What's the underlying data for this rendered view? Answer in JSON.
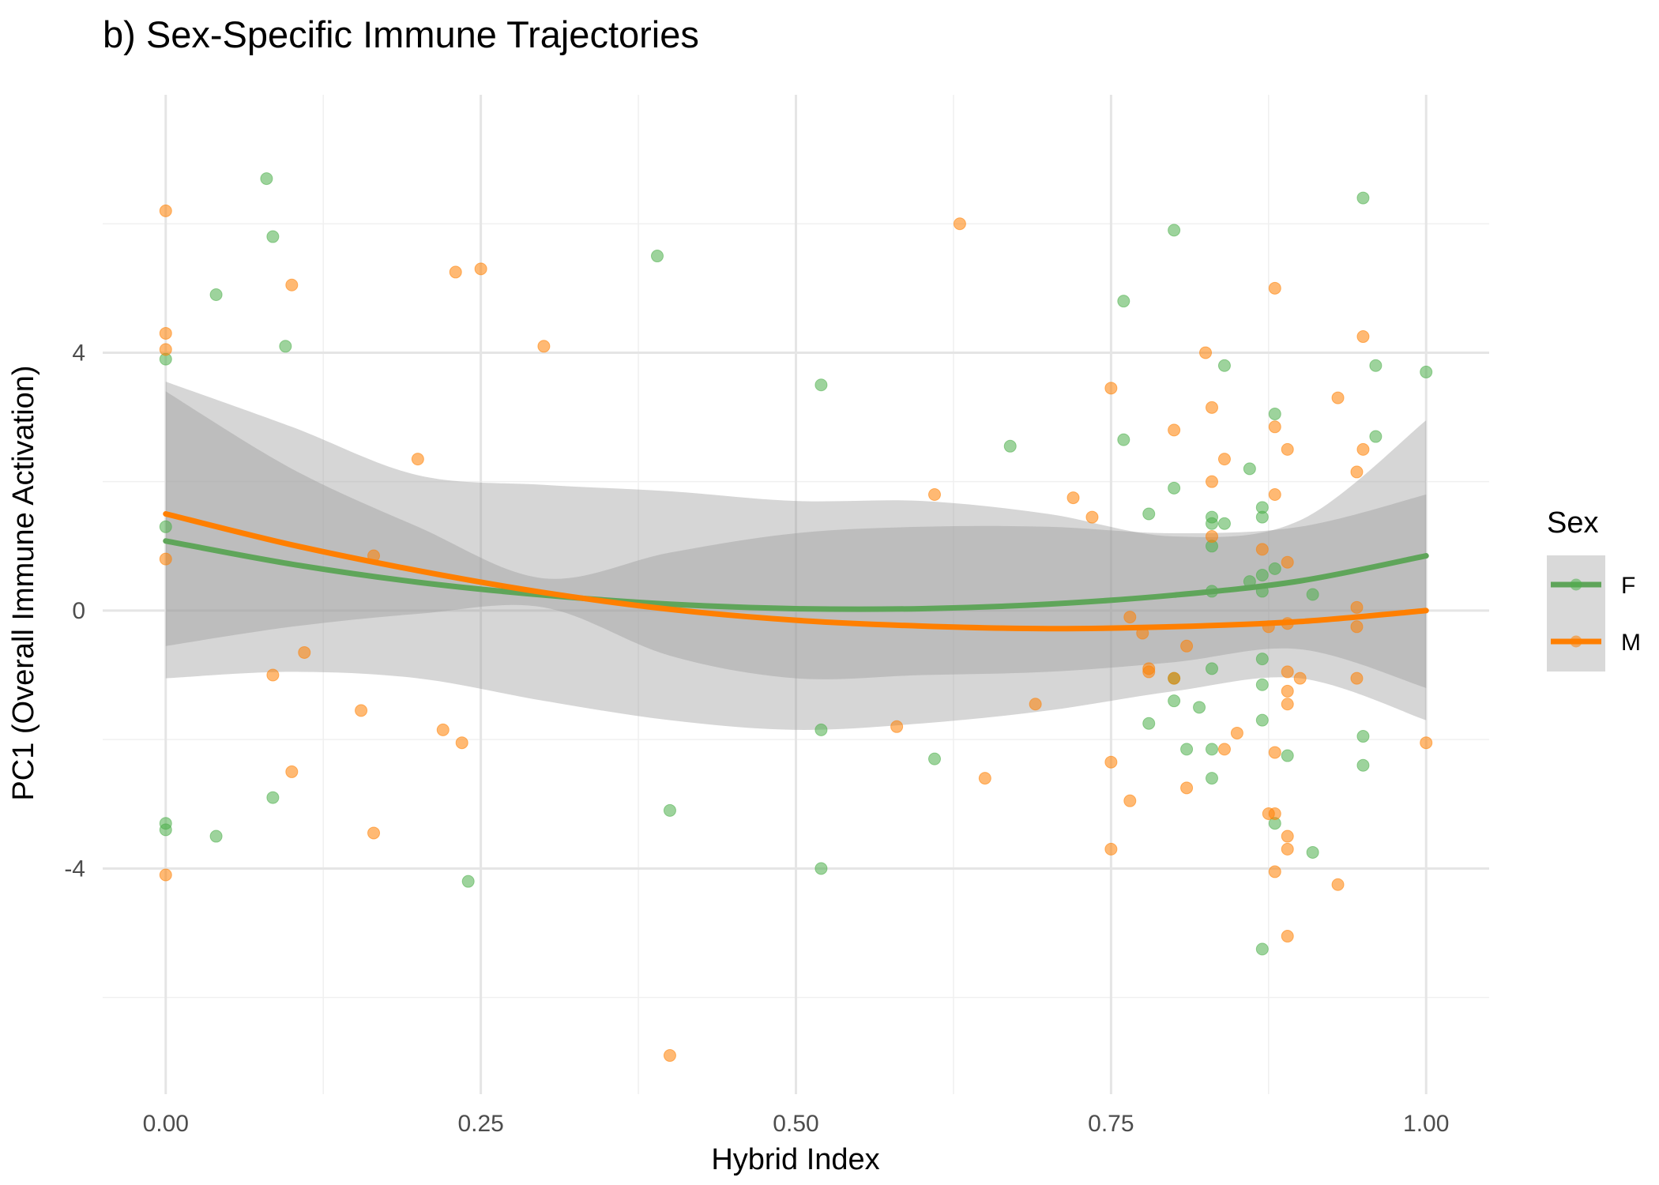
{
  "chart_data": {
    "type": "scatter",
    "title": "b) Sex-Specific Immune Trajectories",
    "xlabel": "Hybrid Index",
    "ylabel": "PC1 (Overall Immune Activation)",
    "xlim": [
      -0.05,
      1.05
    ],
    "ylim": [
      -7.5,
      8.0
    ],
    "x_ticks": [
      {
        "value": 0.0,
        "label": "0.00"
      },
      {
        "value": 0.25,
        "label": "0.25"
      },
      {
        "value": 0.5,
        "label": "0.50"
      },
      {
        "value": 0.75,
        "label": "0.75"
      },
      {
        "value": 1.0,
        "label": "1.00"
      }
    ],
    "y_ticks": [
      {
        "value": 4,
        "label": "4"
      },
      {
        "value": 0,
        "label": "0"
      },
      {
        "value": -4,
        "label": "-4"
      }
    ],
    "grid": true,
    "legend": {
      "title": "Sex",
      "position": "right"
    },
    "series": [
      {
        "name": "F",
        "color": "#4DAF4A",
        "points": [
          [
            0.08,
            6.7
          ],
          [
            0.085,
            5.8
          ],
          [
            0.04,
            4.9
          ],
          [
            0.095,
            4.1
          ],
          [
            0.0,
            3.9
          ],
          [
            0.0,
            1.3
          ],
          [
            0.0,
            -3.3
          ],
          [
            0.0,
            -3.4
          ],
          [
            0.04,
            -3.5
          ],
          [
            0.085,
            -2.9
          ],
          [
            0.24,
            -4.2
          ],
          [
            0.39,
            5.5
          ],
          [
            0.4,
            -3.1
          ],
          [
            0.52,
            3.5
          ],
          [
            0.52,
            -1.85
          ],
          [
            0.52,
            -4.0
          ],
          [
            0.61,
            -2.3
          ],
          [
            0.67,
            2.55
          ],
          [
            0.76,
            4.8
          ],
          [
            0.76,
            2.65
          ],
          [
            0.78,
            1.5
          ],
          [
            0.78,
            -1.75
          ],
          [
            0.8,
            5.9
          ],
          [
            0.8,
            1.9
          ],
          [
            0.8,
            -1.4
          ],
          [
            0.8,
            -1.05
          ],
          [
            0.81,
            -2.15
          ],
          [
            0.82,
            -1.5
          ],
          [
            0.83,
            1.45
          ],
          [
            0.83,
            1.35
          ],
          [
            0.83,
            1.0
          ],
          [
            0.83,
            0.3
          ],
          [
            0.83,
            -0.9
          ],
          [
            0.83,
            -2.15
          ],
          [
            0.83,
            -2.6
          ],
          [
            0.84,
            3.8
          ],
          [
            0.84,
            1.35
          ],
          [
            0.86,
            2.2
          ],
          [
            0.86,
            0.45
          ],
          [
            0.87,
            1.6
          ],
          [
            0.87,
            1.45
          ],
          [
            0.87,
            0.55
          ],
          [
            0.87,
            0.3
          ],
          [
            0.87,
            -0.75
          ],
          [
            0.87,
            -1.15
          ],
          [
            0.87,
            -1.7
          ],
          [
            0.87,
            -5.25
          ],
          [
            0.88,
            3.05
          ],
          [
            0.88,
            0.65
          ],
          [
            0.88,
            -3.3
          ],
          [
            0.89,
            -2.25
          ],
          [
            0.91,
            0.25
          ],
          [
            0.91,
            -3.75
          ],
          [
            0.95,
            6.4
          ],
          [
            0.95,
            -1.95
          ],
          [
            0.95,
            -2.4
          ],
          [
            0.96,
            3.8
          ],
          [
            0.96,
            2.7
          ],
          [
            1.0,
            3.7
          ]
        ],
        "trend": [
          [
            0.0,
            1.08
          ],
          [
            0.1,
            0.72
          ],
          [
            0.2,
            0.44
          ],
          [
            0.3,
            0.24
          ],
          [
            0.4,
            0.1
          ],
          [
            0.5,
            0.03
          ],
          [
            0.6,
            0.03
          ],
          [
            0.7,
            0.1
          ],
          [
            0.8,
            0.24
          ],
          [
            0.9,
            0.46
          ],
          [
            1.0,
            0.85
          ]
        ],
        "band": [
          [
            0.0,
            -0.55,
            3.4
          ],
          [
            0.1,
            -0.25,
            2.2
          ],
          [
            0.2,
            -0.05,
            1.3
          ],
          [
            0.3,
            0.05,
            0.5
          ],
          [
            0.4,
            -0.7,
            0.9
          ],
          [
            0.5,
            -1.05,
            1.2
          ],
          [
            0.6,
            -1.0,
            1.3
          ],
          [
            0.7,
            -0.95,
            1.3
          ],
          [
            0.8,
            -0.8,
            1.2
          ],
          [
            0.9,
            -0.6,
            1.3
          ],
          [
            1.0,
            -1.2,
            1.8
          ]
        ]
      },
      {
        "name": "M",
        "color": "#FF7F00",
        "points": [
          [
            0.0,
            6.2
          ],
          [
            0.0,
            4.3
          ],
          [
            0.0,
            4.05
          ],
          [
            0.0,
            0.8
          ],
          [
            0.0,
            -4.1
          ],
          [
            0.085,
            -1.0
          ],
          [
            0.1,
            5.05
          ],
          [
            0.1,
            -2.5
          ],
          [
            0.11,
            -0.65
          ],
          [
            0.155,
            -1.55
          ],
          [
            0.165,
            0.85
          ],
          [
            0.165,
            -3.45
          ],
          [
            0.2,
            2.35
          ],
          [
            0.22,
            -1.85
          ],
          [
            0.23,
            5.25
          ],
          [
            0.235,
            -2.05
          ],
          [
            0.25,
            5.3
          ],
          [
            0.3,
            4.1
          ],
          [
            0.4,
            -6.9
          ],
          [
            0.58,
            -1.8
          ],
          [
            0.61,
            1.8
          ],
          [
            0.63,
            6.0
          ],
          [
            0.65,
            -2.6
          ],
          [
            0.69,
            -1.45
          ],
          [
            0.72,
            1.75
          ],
          [
            0.735,
            1.45
          ],
          [
            0.75,
            3.45
          ],
          [
            0.75,
            -2.35
          ],
          [
            0.75,
            -3.7
          ],
          [
            0.765,
            -0.1
          ],
          [
            0.765,
            -2.95
          ],
          [
            0.775,
            -0.35
          ],
          [
            0.78,
            -0.95
          ],
          [
            0.78,
            -0.9
          ],
          [
            0.8,
            2.8
          ],
          [
            0.8,
            -1.05
          ],
          [
            0.81,
            -0.55
          ],
          [
            0.81,
            -2.75
          ],
          [
            0.825,
            4.0
          ],
          [
            0.83,
            3.15
          ],
          [
            0.83,
            2.0
          ],
          [
            0.83,
            1.15
          ],
          [
            0.84,
            2.35
          ],
          [
            0.84,
            -2.15
          ],
          [
            0.85,
            -1.9
          ],
          [
            0.87,
            0.95
          ],
          [
            0.875,
            -3.15
          ],
          [
            0.875,
            -0.25
          ],
          [
            0.88,
            5.0
          ],
          [
            0.88,
            2.85
          ],
          [
            0.88,
            1.8
          ],
          [
            0.88,
            -2.2
          ],
          [
            0.88,
            -3.15
          ],
          [
            0.88,
            -4.05
          ],
          [
            0.89,
            2.5
          ],
          [
            0.89,
            0.75
          ],
          [
            0.89,
            -0.2
          ],
          [
            0.89,
            -0.95
          ],
          [
            0.89,
            -1.25
          ],
          [
            0.89,
            -1.45
          ],
          [
            0.89,
            -3.5
          ],
          [
            0.89,
            -3.7
          ],
          [
            0.89,
            -5.05
          ],
          [
            0.9,
            -1.05
          ],
          [
            0.93,
            3.3
          ],
          [
            0.93,
            -4.25
          ],
          [
            0.945,
            2.15
          ],
          [
            0.945,
            0.05
          ],
          [
            0.945,
            -0.25
          ],
          [
            0.945,
            -1.05
          ],
          [
            0.95,
            4.25
          ],
          [
            0.95,
            2.5
          ],
          [
            1.0,
            -2.05
          ]
        ],
        "trend": [
          [
            0.0,
            1.5
          ],
          [
            0.1,
            1.02
          ],
          [
            0.2,
            0.62
          ],
          [
            0.3,
            0.28
          ],
          [
            0.4,
            0.02
          ],
          [
            0.5,
            -0.15
          ],
          [
            0.6,
            -0.24
          ],
          [
            0.7,
            -0.28
          ],
          [
            0.8,
            -0.25
          ],
          [
            0.9,
            -0.17
          ],
          [
            1.0,
            0.0
          ]
        ],
        "band": [
          [
            0.0,
            -1.05,
            3.55
          ],
          [
            0.1,
            -0.95,
            2.85
          ],
          [
            0.2,
            -1.05,
            2.1
          ],
          [
            0.3,
            -1.4,
            1.95
          ],
          [
            0.4,
            -1.7,
            1.85
          ],
          [
            0.5,
            -1.85,
            1.7
          ],
          [
            0.6,
            -1.75,
            1.7
          ],
          [
            0.7,
            -1.55,
            1.5
          ],
          [
            0.8,
            -1.25,
            1.15
          ],
          [
            0.9,
            -1.05,
            1.4
          ],
          [
            1.0,
            -1.7,
            2.95
          ]
        ]
      }
    ]
  }
}
